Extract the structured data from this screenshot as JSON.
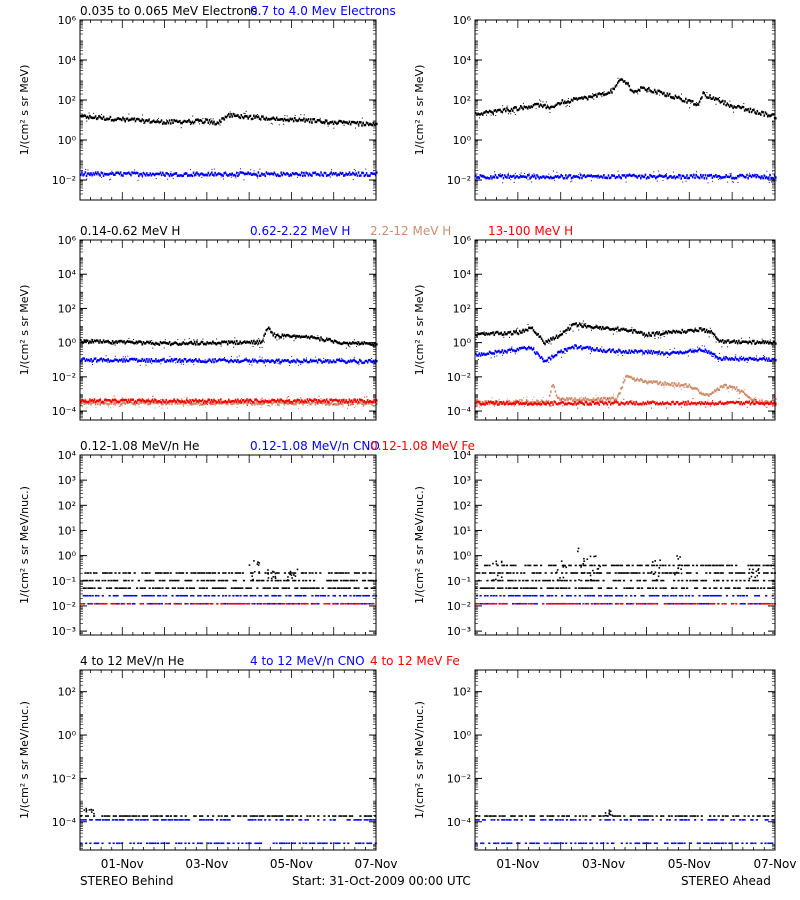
{
  "colors": {
    "black": "#000000",
    "blue": "#0000ff",
    "tan": "#cd8e6e",
    "red": "#ff0000"
  },
  "footer": {
    "left": "STEREO Behind",
    "center": "Start: 31-Oct-2009 00:00 UTC",
    "right": "STEREO Ahead"
  },
  "chart_data": [
    {
      "type": "scatter",
      "row_title": [
        {
          "text": "0.035 to 0.065 MeV Electrons",
          "color": "#000000"
        },
        {
          "text": "0.7 to 4.0 Mev Electrons",
          "color": "#0000ff"
        }
      ],
      "ylabel": "1/(cm² s sr MeV)",
      "yscale": "log",
      "ylim": [
        0.001,
        1000000
      ],
      "yticks": [
        {
          "v": 0.01,
          "label": "10⁻²"
        },
        {
          "v": 1,
          "label": "10⁰"
        },
        {
          "v": 100,
          "label": "10²"
        },
        {
          "v": 10000,
          "label": "10⁴"
        },
        {
          "v": 1000000,
          "label": "10⁶"
        }
      ],
      "x_days_range": [
        0,
        7
      ],
      "xticks": [
        "01-Nov",
        "03-Nov",
        "05-Nov",
        "07-Nov"
      ],
      "spacecraft": {
        "behind": {
          "series": [
            {
              "name": "0.035 to 0.065 MeV Electrons",
              "color": "#000000",
              "style": "band",
              "points": [
                [
                  0,
                  15
                ],
                [
                  1,
                  11
                ],
                [
                  2,
                  8
                ],
                [
                  3,
                  9
                ],
                [
                  3.2,
                  7
                ],
                [
                  3.5,
                  18
                ],
                [
                  4,
                  14
                ],
                [
                  5,
                  11
                ],
                [
                  6,
                  8
                ],
                [
                  7,
                  6
                ]
              ]
            },
            {
              "name": "0.7 to 4.0 Mev Electrons",
              "color": "#0000ff",
              "style": "band",
              "points": [
                [
                  0,
                  0.02
                ],
                [
                  3.5,
                  0.02
                ],
                [
                  7,
                  0.02
                ]
              ]
            }
          ]
        },
        "ahead": {
          "series": [
            {
              "name": "0.035 to 0.065 MeV Electrons",
              "color": "#000000",
              "style": "band",
              "points": [
                [
                  0,
                  20
                ],
                [
                  1,
                  40
                ],
                [
                  1.5,
                  60
                ],
                [
                  1.7,
                  40
                ],
                [
                  2,
                  80
                ],
                [
                  2.5,
                  120
                ],
                [
                  3,
                  200
                ],
                [
                  3.2,
                  300
                ],
                [
                  3.4,
                  1200
                ],
                [
                  3.7,
                  250
                ],
                [
                  3.9,
                  400
                ],
                [
                  4.5,
                  180
                ],
                [
                  5.2,
                  60
                ],
                [
                  5.3,
                  200
                ],
                [
                  6,
                  50
                ],
                [
                  7,
                  15
                ]
              ]
            },
            {
              "name": "0.7 to 4.0 Mev Electrons",
              "color": "#0000ff",
              "style": "band",
              "points": [
                [
                  0,
                  0.015
                ],
                [
                  3.5,
                  0.015
                ],
                [
                  7,
                  0.015
                ]
              ]
            }
          ]
        }
      }
    },
    {
      "type": "scatter",
      "row_title": [
        {
          "text": "0.14-0.62 MeV H",
          "color": "#000000"
        },
        {
          "text": "0.62-2.22 MeV H",
          "color": "#0000ff"
        },
        {
          "text": "2.2-12 MeV H",
          "color": "#cd8e6e"
        },
        {
          "text": "13-100 MeV H",
          "color": "#ff0000"
        }
      ],
      "ylabel": "1/(cm² s sr MeV)",
      "yscale": "log",
      "ylim": [
        3e-05,
        1000000
      ],
      "yticks": [
        {
          "v": 0.0001,
          "label": "10⁻⁴"
        },
        {
          "v": 0.01,
          "label": "10⁻²"
        },
        {
          "v": 1,
          "label": "10⁰"
        },
        {
          "v": 100,
          "label": "10²"
        },
        {
          "v": 10000,
          "label": "10⁴"
        },
        {
          "v": 1000000,
          "label": "10⁶"
        }
      ],
      "x_days_range": [
        0,
        7
      ],
      "xticks": [
        "01-Nov",
        "03-Nov",
        "05-Nov",
        "07-Nov"
      ],
      "spacecraft": {
        "behind": {
          "series": [
            {
              "name": "0.14-0.62 MeV H",
              "color": "#000000",
              "style": "band",
              "points": [
                [
                  0,
                  1.2
                ],
                [
                  2,
                  0.9
                ],
                [
                  4.3,
                  1.1
                ],
                [
                  4.4,
                  8
                ],
                [
                  4.6,
                  2.5
                ],
                [
                  5.5,
                  2
                ],
                [
                  6.2,
                  1
                ],
                [
                  7,
                  0.8
                ]
              ]
            },
            {
              "name": "0.62-2.22 MeV H",
              "color": "#0000ff",
              "style": "band",
              "points": [
                [
                  0,
                  0.1
                ],
                [
                  3.5,
                  0.09
                ],
                [
                  7,
                  0.08
                ]
              ]
            },
            {
              "name": "2.2-12 MeV H",
              "color": "#cd8e6e",
              "style": "band",
              "points": [
                [
                  0,
                  0.0003
                ],
                [
                  7,
                  0.0003
                ]
              ]
            },
            {
              "name": "13-100 MeV H",
              "color": "#ff0000",
              "style": "band",
              "points": [
                [
                  0,
                  0.0004
                ],
                [
                  7,
                  0.0004
                ]
              ]
            }
          ]
        },
        "ahead": {
          "series": [
            {
              "name": "0.14-0.62 MeV H",
              "color": "#000000",
              "style": "band",
              "points": [
                [
                  0,
                  3
                ],
                [
                  1,
                  4
                ],
                [
                  1.3,
                  8
                ],
                [
                  1.6,
                  1
                ],
                [
                  2,
                  3
                ],
                [
                  2.3,
                  12
                ],
                [
                  3,
                  7
                ],
                [
                  3.5,
                  6
                ],
                [
                  4,
                  3
                ],
                [
                  4.5,
                  4
                ],
                [
                  5,
                  5
                ],
                [
                  5.3,
                  6
                ],
                [
                  5.5,
                  4
                ],
                [
                  5.7,
                  1.2
                ],
                [
                  7,
                  1
                ]
              ]
            },
            {
              "name": "0.62-2.22 MeV H",
              "color": "#0000ff",
              "style": "band",
              "points": [
                [
                  0,
                  0.2
                ],
                [
                  1.3,
                  0.5
                ],
                [
                  1.6,
                  0.08
                ],
                [
                  2,
                  0.3
                ],
                [
                  2.3,
                  0.6
                ],
                [
                  3,
                  0.35
                ],
                [
                  4.5,
                  0.25
                ],
                [
                  5.3,
                  0.4
                ],
                [
                  5.7,
                  0.12
                ],
                [
                  7,
                  0.1
                ]
              ]
            },
            {
              "name": "2.2-12 MeV H",
              "color": "#cd8e6e",
              "style": "band",
              "points": [
                [
                  0,
                  0.0003
                ],
                [
                  1.7,
                  0.0004
                ],
                [
                  1.8,
                  0.004
                ],
                [
                  1.9,
                  0.0005
                ],
                [
                  3.3,
                  0.0005
                ],
                [
                  3.5,
                  0.01
                ],
                [
                  4,
                  0.005
                ],
                [
                  5,
                  0.003
                ],
                [
                  5.4,
                  0.0008
                ],
                [
                  5.8,
                  0.003
                ],
                [
                  6.1,
                  0.002
                ],
                [
                  6.5,
                  0.0004
                ],
                [
                  7,
                  0.0003
                ]
              ]
            },
            {
              "name": "13-100 MeV H",
              "color": "#ff0000",
              "style": "band",
              "points": [
                [
                  0,
                  0.0003
                ],
                [
                  7,
                  0.0003
                ]
              ]
            }
          ]
        }
      }
    },
    {
      "type": "scatter",
      "row_title": [
        {
          "text": "0.12-1.08 MeV/n He",
          "color": "#000000"
        },
        {
          "text": "0.12-1.08 MeV/n CNO",
          "color": "#0000ff"
        },
        {
          "text": "0.12-1.08 MeV Fe",
          "color": "#ff0000"
        }
      ],
      "ylabel": "1/(cm² s sr MeV/nuc.)",
      "yscale": "log",
      "ylim": [
        0.0007,
        10000
      ],
      "yticks": [
        {
          "v": 0.001,
          "label": "10⁻³"
        },
        {
          "v": 0.01,
          "label": "10⁻²"
        },
        {
          "v": 0.1,
          "label": "10⁻¹"
        },
        {
          "v": 1,
          "label": "10⁰"
        },
        {
          "v": 10,
          "label": "10¹"
        },
        {
          "v": 100,
          "label": "10²"
        },
        {
          "v": 1000,
          "label": "10³"
        },
        {
          "v": 10000,
          "label": "10⁴"
        }
      ],
      "x_days_range": [
        0,
        7
      ],
      "xticks": [
        "01-Nov",
        "03-Nov",
        "05-Nov",
        "07-Nov"
      ],
      "spacecraft": {
        "behind": {
          "series": [
            {
              "name": "0.12-1.08 MeV/n He",
              "color": "#000000",
              "style": "levels",
              "levels": [
                0.1,
                0.05,
                0.2
              ],
              "spikes": [
                [
                  4.1,
                  0.8
                ],
                [
                  4.5,
                  0.3
                ],
                [
                  5,
                  0.35
                ]
              ]
            },
            {
              "name": "0.12-1.08 MeV/n CNO",
              "color": "#0000ff",
              "style": "levels",
              "levels": [
                0.012,
                0.025
              ]
            },
            {
              "name": "0.12-1.08 MeV Fe",
              "color": "#ff0000",
              "style": "levels",
              "levels": [
                0.012
              ]
            }
          ]
        },
        "ahead": {
          "series": [
            {
              "name": "0.12-1.08 MeV/n He",
              "color": "#000000",
              "style": "levels",
              "levels": [
                0.1,
                0.05,
                0.2,
                0.4
              ],
              "spikes": [
                [
                  0.5,
                  0.6
                ],
                [
                  2,
                  0.9
                ],
                [
                  2.5,
                  2
                ],
                [
                  2.8,
                  1
                ],
                [
                  4.2,
                  0.8
                ],
                [
                  4.7,
                  1
                ],
                [
                  6.5,
                  0.3
                ]
              ]
            },
            {
              "name": "0.12-1.08 MeV/n CNO",
              "color": "#0000ff",
              "style": "levels",
              "levels": [
                0.012,
                0.025
              ]
            },
            {
              "name": "0.12-1.08 MeV Fe",
              "color": "#ff0000",
              "style": "levels",
              "levels": [
                0.012
              ]
            }
          ]
        }
      }
    },
    {
      "type": "scatter",
      "row_title": [
        {
          "text": "4 to 12 MeV/n He",
          "color": "#000000"
        },
        {
          "text": "4 to 12 MeV/n CNO",
          "color": "#0000ff"
        },
        {
          "text": "4 to 12 MeV Fe",
          "color": "#ff0000"
        }
      ],
      "ylabel": "1/(cm² s sr MeV/nuc.)",
      "yscale": "log",
      "ylim": [
        5e-06,
        1000
      ],
      "yticks": [
        {
          "v": 0.0001,
          "label": "10⁻⁴"
        },
        {
          "v": 0.01,
          "label": "10⁻²"
        },
        {
          "v": 1,
          "label": "10⁰"
        },
        {
          "v": 100,
          "label": "10²"
        }
      ],
      "x_days_range": [
        0,
        7
      ],
      "xticks": [
        "01-Nov",
        "03-Nov",
        "05-Nov",
        "07-Nov"
      ],
      "spacecraft": {
        "behind": {
          "series": [
            {
              "name": "4 to 12 MeV/n He",
              "color": "#000000",
              "style": "levels",
              "levels": [
                0.00018
              ],
              "spikes": [
                [
                  0.2,
                  0.0004
                ]
              ]
            },
            {
              "name": "4 to 12 MeV/n CNO",
              "color": "#0000ff",
              "style": "levels",
              "levels": [
                0.00012,
                1e-05
              ]
            },
            {
              "name": "4 to 12 MeV Fe",
              "color": "#ff0000",
              "style": "levels",
              "levels": []
            }
          ]
        },
        "ahead": {
          "series": [
            {
              "name": "4 to 12 MeV/n He",
              "color": "#000000",
              "style": "levels",
              "levels": [
                0.00018
              ],
              "spikes": [
                [
                  3.1,
                  0.0004
                ]
              ]
            },
            {
              "name": "4 to 12 MeV/n CNO",
              "color": "#0000ff",
              "style": "levels",
              "levels": [
                0.00012,
                1e-05
              ]
            },
            {
              "name": "4 to 12 MeV Fe",
              "color": "#ff0000",
              "style": "levels",
              "levels": []
            }
          ]
        }
      }
    }
  ]
}
